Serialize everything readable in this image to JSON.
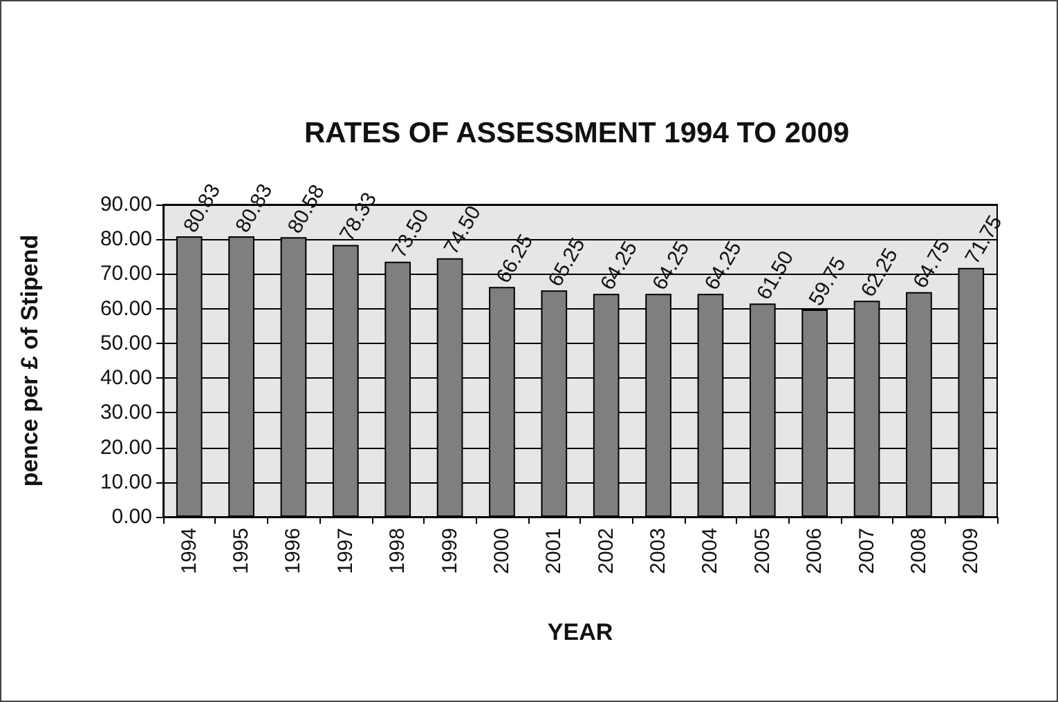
{
  "chart_data": {
    "type": "bar",
    "title": "RATES OF ASSESSMENT 1994 TO 2009",
    "xlabel": "YEAR",
    "ylabel": "pence per £ of Stipend",
    "categories": [
      "1994",
      "1995",
      "1996",
      "1997",
      "1998",
      "1999",
      "2000",
      "2001",
      "2002",
      "2003",
      "2004",
      "2005",
      "2006",
      "2007",
      "2008",
      "2009"
    ],
    "values": [
      80.83,
      80.83,
      80.58,
      78.33,
      73.5,
      74.5,
      66.25,
      65.25,
      64.25,
      64.25,
      64.25,
      61.5,
      59.75,
      62.25,
      64.75,
      71.75
    ],
    "value_labels": [
      "80.83",
      "80.83",
      "80.58",
      "78.33",
      "73.50",
      "74.50",
      "66.25",
      "65.25",
      "64.25",
      "64.25",
      "64.25",
      "61.50",
      "59.75",
      "62.25",
      "64.75",
      "71.75"
    ],
    "color": "#7f7f7f",
    "ylim": [
      0,
      90
    ],
    "yticks": [
      {
        "value": 0,
        "label": "0.00"
      },
      {
        "value": 10,
        "label": "10.00"
      },
      {
        "value": 20,
        "label": "20.00"
      },
      {
        "value": 30,
        "label": "30.00"
      },
      {
        "value": 40,
        "label": "40.00"
      },
      {
        "value": 50,
        "label": "50.00"
      },
      {
        "value": 60,
        "label": "60.00"
      },
      {
        "value": 70,
        "label": "70.00"
      },
      {
        "value": 80,
        "label": "80.00"
      },
      {
        "value": 90,
        "label": "90.00"
      }
    ],
    "grid": "y"
  }
}
